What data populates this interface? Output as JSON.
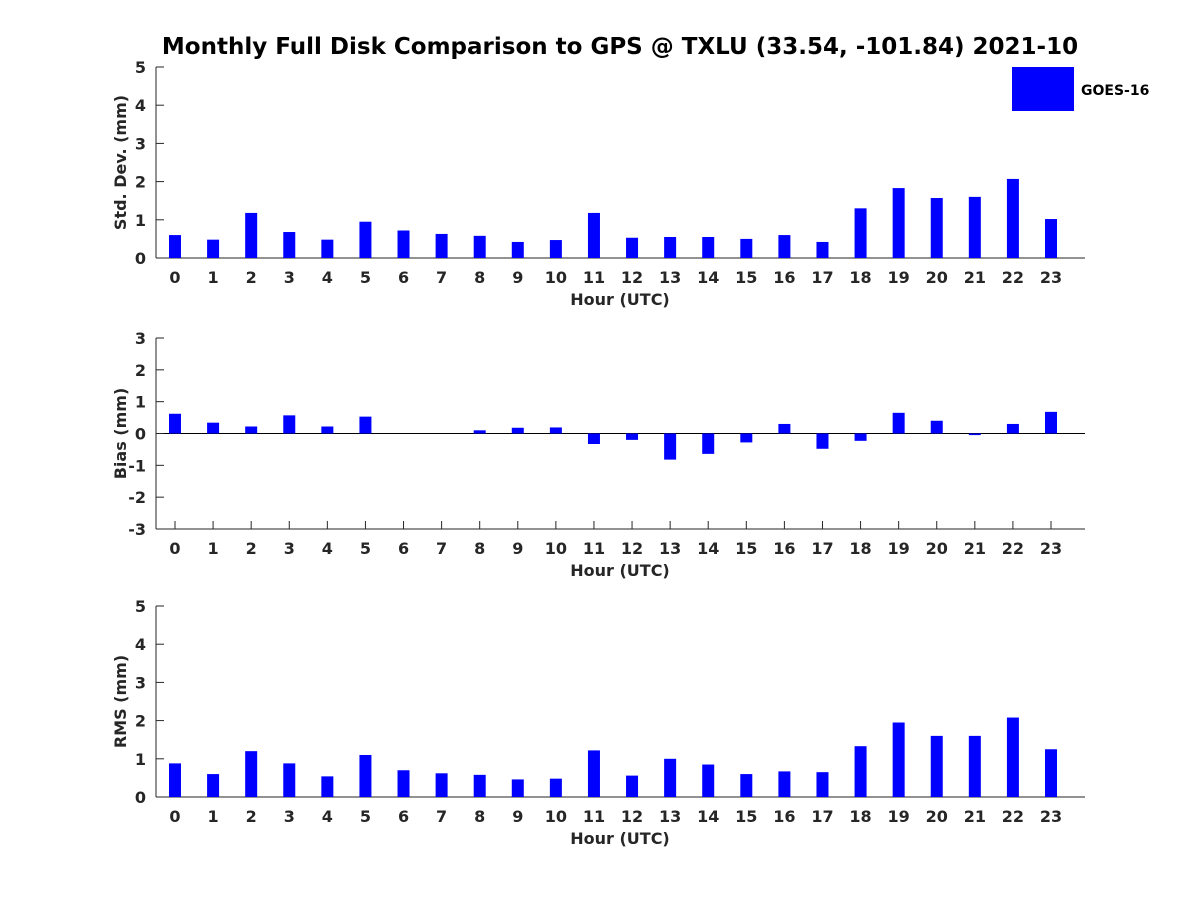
{
  "title": "Monthly Full Disk Comparison to GPS @ TXLU (33.54, -101.84) 2021-10",
  "legend": {
    "label": "GOES-16",
    "color": "#0000ff"
  },
  "chart_data": [
    {
      "type": "bar",
      "name": "std-dev",
      "categories": [
        "0",
        "1",
        "2",
        "3",
        "4",
        "5",
        "6",
        "7",
        "8",
        "9",
        "10",
        "11",
        "12",
        "13",
        "14",
        "15",
        "16",
        "17",
        "18",
        "19",
        "20",
        "21",
        "22",
        "23"
      ],
      "series": [
        {
          "name": "GOES-16",
          "values": [
            0.6,
            0.48,
            1.18,
            0.68,
            0.48,
            0.95,
            0.72,
            0.63,
            0.58,
            0.42,
            0.47,
            1.18,
            0.53,
            0.55,
            0.55,
            0.5,
            0.6,
            0.42,
            1.3,
            1.83,
            1.57,
            1.6,
            2.07,
            1.02
          ]
        }
      ],
      "title": "",
      "xlabel": "Hour (UTC)",
      "ylabel": "Std. Dev. (mm)",
      "ylim": [
        0,
        5
      ],
      "yticks": [
        "0",
        "1",
        "2",
        "3",
        "4",
        "5"
      ]
    },
    {
      "type": "bar",
      "name": "bias",
      "categories": [
        "0",
        "1",
        "2",
        "3",
        "4",
        "5",
        "6",
        "7",
        "8",
        "9",
        "10",
        "11",
        "12",
        "13",
        "14",
        "15",
        "16",
        "17",
        "18",
        "19",
        "20",
        "21",
        "22",
        "23"
      ],
      "series": [
        {
          "name": "GOES-16",
          "values": [
            0.62,
            0.34,
            0.22,
            0.57,
            0.22,
            0.53,
            0,
            0,
            0.1,
            0.18,
            0.19,
            -0.33,
            -0.2,
            -0.82,
            -0.64,
            -0.28,
            0.3,
            -0.48,
            -0.23,
            0.65,
            0.4,
            -0.05,
            0.3,
            0.68
          ]
        }
      ],
      "title": "",
      "xlabel": "Hour (UTC)",
      "ylabel": "Bias (mm)",
      "ylim": [
        -3,
        3
      ],
      "yticks": [
        "-3",
        "-2",
        "-1",
        "0",
        "1",
        "2",
        "3"
      ]
    },
    {
      "type": "bar",
      "name": "rms",
      "categories": [
        "0",
        "1",
        "2",
        "3",
        "4",
        "5",
        "6",
        "7",
        "8",
        "9",
        "10",
        "11",
        "12",
        "13",
        "14",
        "15",
        "16",
        "17",
        "18",
        "19",
        "20",
        "21",
        "22",
        "23"
      ],
      "series": [
        {
          "name": "GOES-16",
          "values": [
            0.88,
            0.6,
            1.2,
            0.88,
            0.54,
            1.1,
            0.7,
            0.62,
            0.58,
            0.46,
            0.48,
            1.22,
            0.56,
            1.0,
            0.85,
            0.6,
            0.67,
            0.65,
            1.33,
            1.95,
            1.6,
            1.6,
            2.08,
            1.25
          ]
        }
      ],
      "title": "",
      "xlabel": "Hour (UTC)",
      "ylabel": "RMS (mm)",
      "ylim": [
        0,
        5
      ],
      "yticks": [
        "0",
        "1",
        "2",
        "3",
        "4",
        "5"
      ]
    }
  ]
}
